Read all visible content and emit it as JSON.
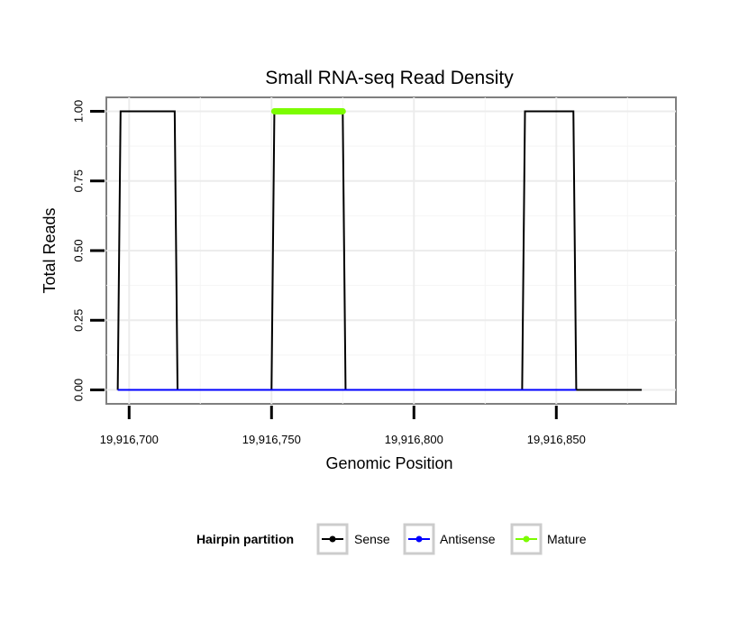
{
  "chart_data": {
    "type": "line",
    "title": "Small RNA-seq Read Density",
    "xlabel": "Genomic Position",
    "ylabel": "Total Reads",
    "xlim": [
      19916692,
      19916892
    ],
    "ylim": [
      -0.05,
      1.05
    ],
    "x_ticks": [
      19916700,
      19916750,
      19916800,
      19916850
    ],
    "x_tick_labels": [
      "19,916,700",
      "19,916,750",
      "19,916,800",
      "19,916,850"
    ],
    "y_ticks": [
      0,
      0.25,
      0.5,
      0.75,
      1.0
    ],
    "y_tick_labels": [
      "0.00",
      "0.25",
      "0.50",
      "0.75",
      "1.00"
    ],
    "grid": true,
    "legend_position": "bottom",
    "legend_title": "Hairpin partition",
    "series": [
      {
        "name": "Sense",
        "color": "#000000",
        "x": [
          19916696,
          19916697,
          19916716,
          19916717,
          19916750,
          19916751,
          19916775,
          19916776,
          19916838,
          19916839,
          19916856,
          19916857,
          19916880
        ],
        "y": [
          0,
          1,
          1,
          0,
          0,
          1,
          1,
          0,
          0,
          1,
          1,
          0,
          0
        ]
      },
      {
        "name": "Antisense",
        "color": "#0000ff",
        "x": [
          19916696,
          19916717,
          19916750,
          19916776,
          19916838,
          19916857
        ],
        "y": [
          0,
          0,
          0,
          0,
          0,
          0
        ]
      },
      {
        "name": "Mature",
        "color": "#7cfc00",
        "x": [
          19916751,
          19916775
        ],
        "y": [
          1,
          1
        ]
      }
    ]
  }
}
